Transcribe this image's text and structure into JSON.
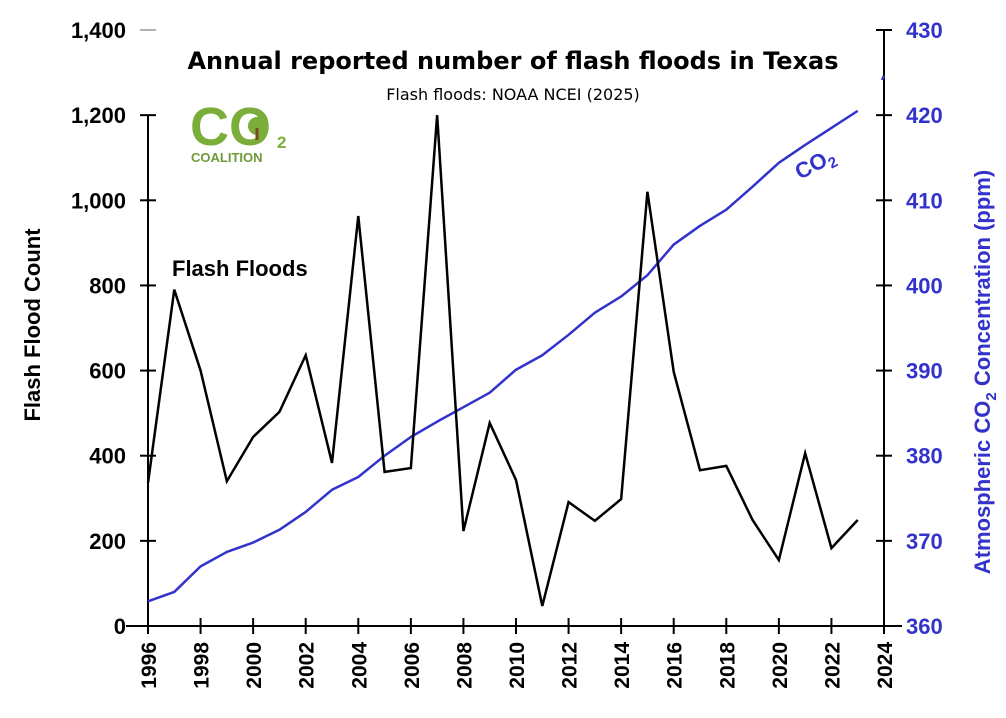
{
  "chart_data": {
    "type": "line",
    "title": "Annual reported number of flash floods in Texas",
    "subtitle": "Flash floods: NOAA NCEI (2025)",
    "logo": {
      "main": "CO",
      "subscript": "2",
      "caption": "COALITION",
      "color": "#7aad3a"
    },
    "xlabel": "",
    "x": [
      1996,
      1997,
      1998,
      1999,
      2000,
      2001,
      2002,
      2003,
      2004,
      2005,
      2006,
      2007,
      2008,
      2009,
      2010,
      2011,
      2012,
      2013,
      2014,
      2015,
      2016,
      2017,
      2018,
      2019,
      2020,
      2021,
      2022,
      2023
    ],
    "xlim": [
      1996,
      2024
    ],
    "xticks": [
      "1996",
      "1998",
      "2000",
      "2002",
      "2004",
      "2006",
      "2008",
      "2010",
      "2012",
      "2014",
      "2016",
      "2018",
      "2020",
      "2022",
      "2024"
    ],
    "y_left": {
      "label": "Flash Flood Count",
      "ylim": [
        0,
        1400
      ],
      "ticks": [
        "0",
        "200",
        "400",
        "600",
        "800",
        "1,000",
        "1,200",
        "1,400"
      ],
      "color": "#000000"
    },
    "y_right": {
      "label_prefix": "Atmospheric CO",
      "label_sub": "2",
      "label_suffix": " Concentration (ppm)",
      "ylim": [
        360,
        430
      ],
      "ticks": [
        "360",
        "370",
        "380",
        "390",
        "400",
        "410",
        "420",
        "430"
      ],
      "color": "#3333cc"
    },
    "series": [
      {
        "name": "Flash Floods",
        "axis": "left",
        "color": "#000000",
        "values": [
          336,
          790,
          600,
          340,
          444,
          503,
          636,
          383,
          963,
          362,
          371,
          1200,
          223,
          477,
          343,
          47,
          291,
          247,
          298,
          1020,
          597,
          366,
          376,
          249,
          155,
          406,
          183,
          249
        ]
      },
      {
        "name": "CO2",
        "label_main": "CO",
        "label_sub": "2",
        "axis": "right",
        "color": "#3333cc",
        "x": [
          1996,
          1997,
          1998,
          1999,
          2000,
          2001,
          2002,
          2003,
          2004,
          2005,
          2006,
          2007,
          2008,
          2009,
          2010,
          2011,
          2012,
          2013,
          2014,
          2015,
          2016,
          2017,
          2018,
          2019,
          2020,
          2021,
          2022,
          2023
        ],
        "values": [
          362.9,
          364.0,
          367.0,
          368.7,
          369.8,
          371.3,
          373.4,
          376.0,
          377.5,
          380.0,
          382.2,
          384.0,
          385.7,
          387.4,
          390.1,
          391.8,
          394.2,
          396.8,
          398.7,
          401.2,
          404.8,
          407.0,
          408.9,
          411.6,
          414.4,
          416.5,
          418.5,
          420.5
        ]
      },
      {
        "name": "CO2 2024 marker",
        "axis": "right",
        "color": "#3333cc",
        "x": [
          2024
        ],
        "values": [
          424.6
        ]
      }
    ],
    "grid": false,
    "legend": "inline labels"
  }
}
